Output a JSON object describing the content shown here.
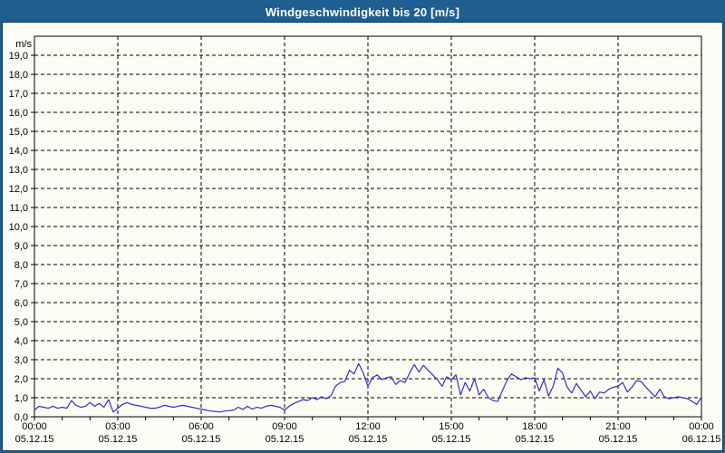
{
  "window": {
    "title": "Windgeschwindigkeit bis 20 [m/s]"
  },
  "colors": {
    "titlebar_bg": "#1E5E91",
    "titlebar_text": "#FFFFFF",
    "frame_border": "#1E5E91",
    "inner_border": "#0C3C62",
    "content_bg": "#FCFCF4",
    "grid": "#000000",
    "axis": "#000000",
    "series_line": "#3030C8"
  },
  "chart_data": {
    "type": "line",
    "title": "Windgeschwindigkeit bis 20 [m/s]",
    "unit_label": "m/s",
    "ylim": [
      0,
      20
    ],
    "ytick_step": 1,
    "ytick_labels": [
      "0,0",
      "1,0",
      "2,0",
      "3,0",
      "4,0",
      "5,0",
      "6,0",
      "7,0",
      "8,0",
      "9,0",
      "10,0",
      "11,0",
      "12,0",
      "13,0",
      "14,0",
      "15,0",
      "16,0",
      "17,0",
      "18,0",
      "19,0"
    ],
    "grid": true,
    "grid_style": "dashed",
    "legend": "none",
    "x_range_hours": 24,
    "x_minor_tick_hours": 1,
    "xticks": [
      {
        "time": "00:00",
        "date": "05.12.15"
      },
      {
        "time": "03:00",
        "date": "05.12.15"
      },
      {
        "time": "06:00",
        "date": "05.12.15"
      },
      {
        "time": "09:00",
        "date": "05.12.15"
      },
      {
        "time": "12:00",
        "date": "05.12.15"
      },
      {
        "time": "15:00",
        "date": "05.12.15"
      },
      {
        "time": "18:00",
        "date": "05.12.15"
      },
      {
        "time": "21:00",
        "date": "05.12.15"
      },
      {
        "time": "00:00",
        "date": "06.12.15"
      }
    ],
    "series": [
      {
        "name": "Windgeschwindigkeit",
        "unit": "m/s",
        "x_start_minutes": 0,
        "x_step_minutes": 10,
        "values": [
          0.35,
          0.55,
          0.5,
          0.45,
          0.55,
          0.45,
          0.5,
          0.45,
          0.85,
          0.6,
          0.5,
          0.55,
          0.75,
          0.55,
          0.7,
          0.5,
          0.9,
          0.25,
          0.45,
          0.65,
          0.75,
          0.65,
          0.6,
          0.55,
          0.5,
          0.45,
          0.45,
          0.5,
          0.6,
          0.55,
          0.5,
          0.55,
          0.6,
          0.55,
          0.5,
          0.45,
          0.4,
          0.35,
          0.3,
          0.28,
          0.25,
          0.3,
          0.32,
          0.35,
          0.5,
          0.38,
          0.55,
          0.4,
          0.5,
          0.45,
          0.55,
          0.6,
          0.55,
          0.5,
          0.35,
          0.55,
          0.7,
          0.8,
          0.9,
          0.85,
          1.0,
          0.9,
          1.05,
          0.95,
          1.1,
          1.6,
          1.8,
          1.85,
          2.45,
          2.25,
          2.8,
          2.3,
          1.6,
          2.05,
          2.2,
          1.95,
          2.05,
          2.1,
          1.7,
          1.9,
          1.8,
          2.3,
          2.75,
          2.35,
          2.7,
          2.45,
          2.2,
          1.95,
          1.6,
          2.1,
          1.95,
          2.2,
          1.15,
          1.8,
          1.35,
          2.0,
          1.15,
          1.45,
          1.0,
          0.85,
          0.8,
          1.35,
          1.9,
          2.25,
          2.1,
          1.95,
          2.05,
          2.0,
          2.05,
          1.35,
          1.95,
          1.1,
          1.6,
          2.55,
          2.3,
          1.55,
          1.25,
          1.75,
          1.4,
          1.05,
          1.35,
          0.95,
          1.3,
          1.25,
          1.45,
          1.55,
          1.6,
          1.8,
          1.3,
          1.55,
          1.9,
          1.85,
          1.55,
          1.3,
          1.05,
          1.45,
          1.05,
          0.95,
          1.0,
          1.05,
          1.0,
          0.95,
          0.8,
          0.65,
          1.05
        ]
      }
    ]
  }
}
